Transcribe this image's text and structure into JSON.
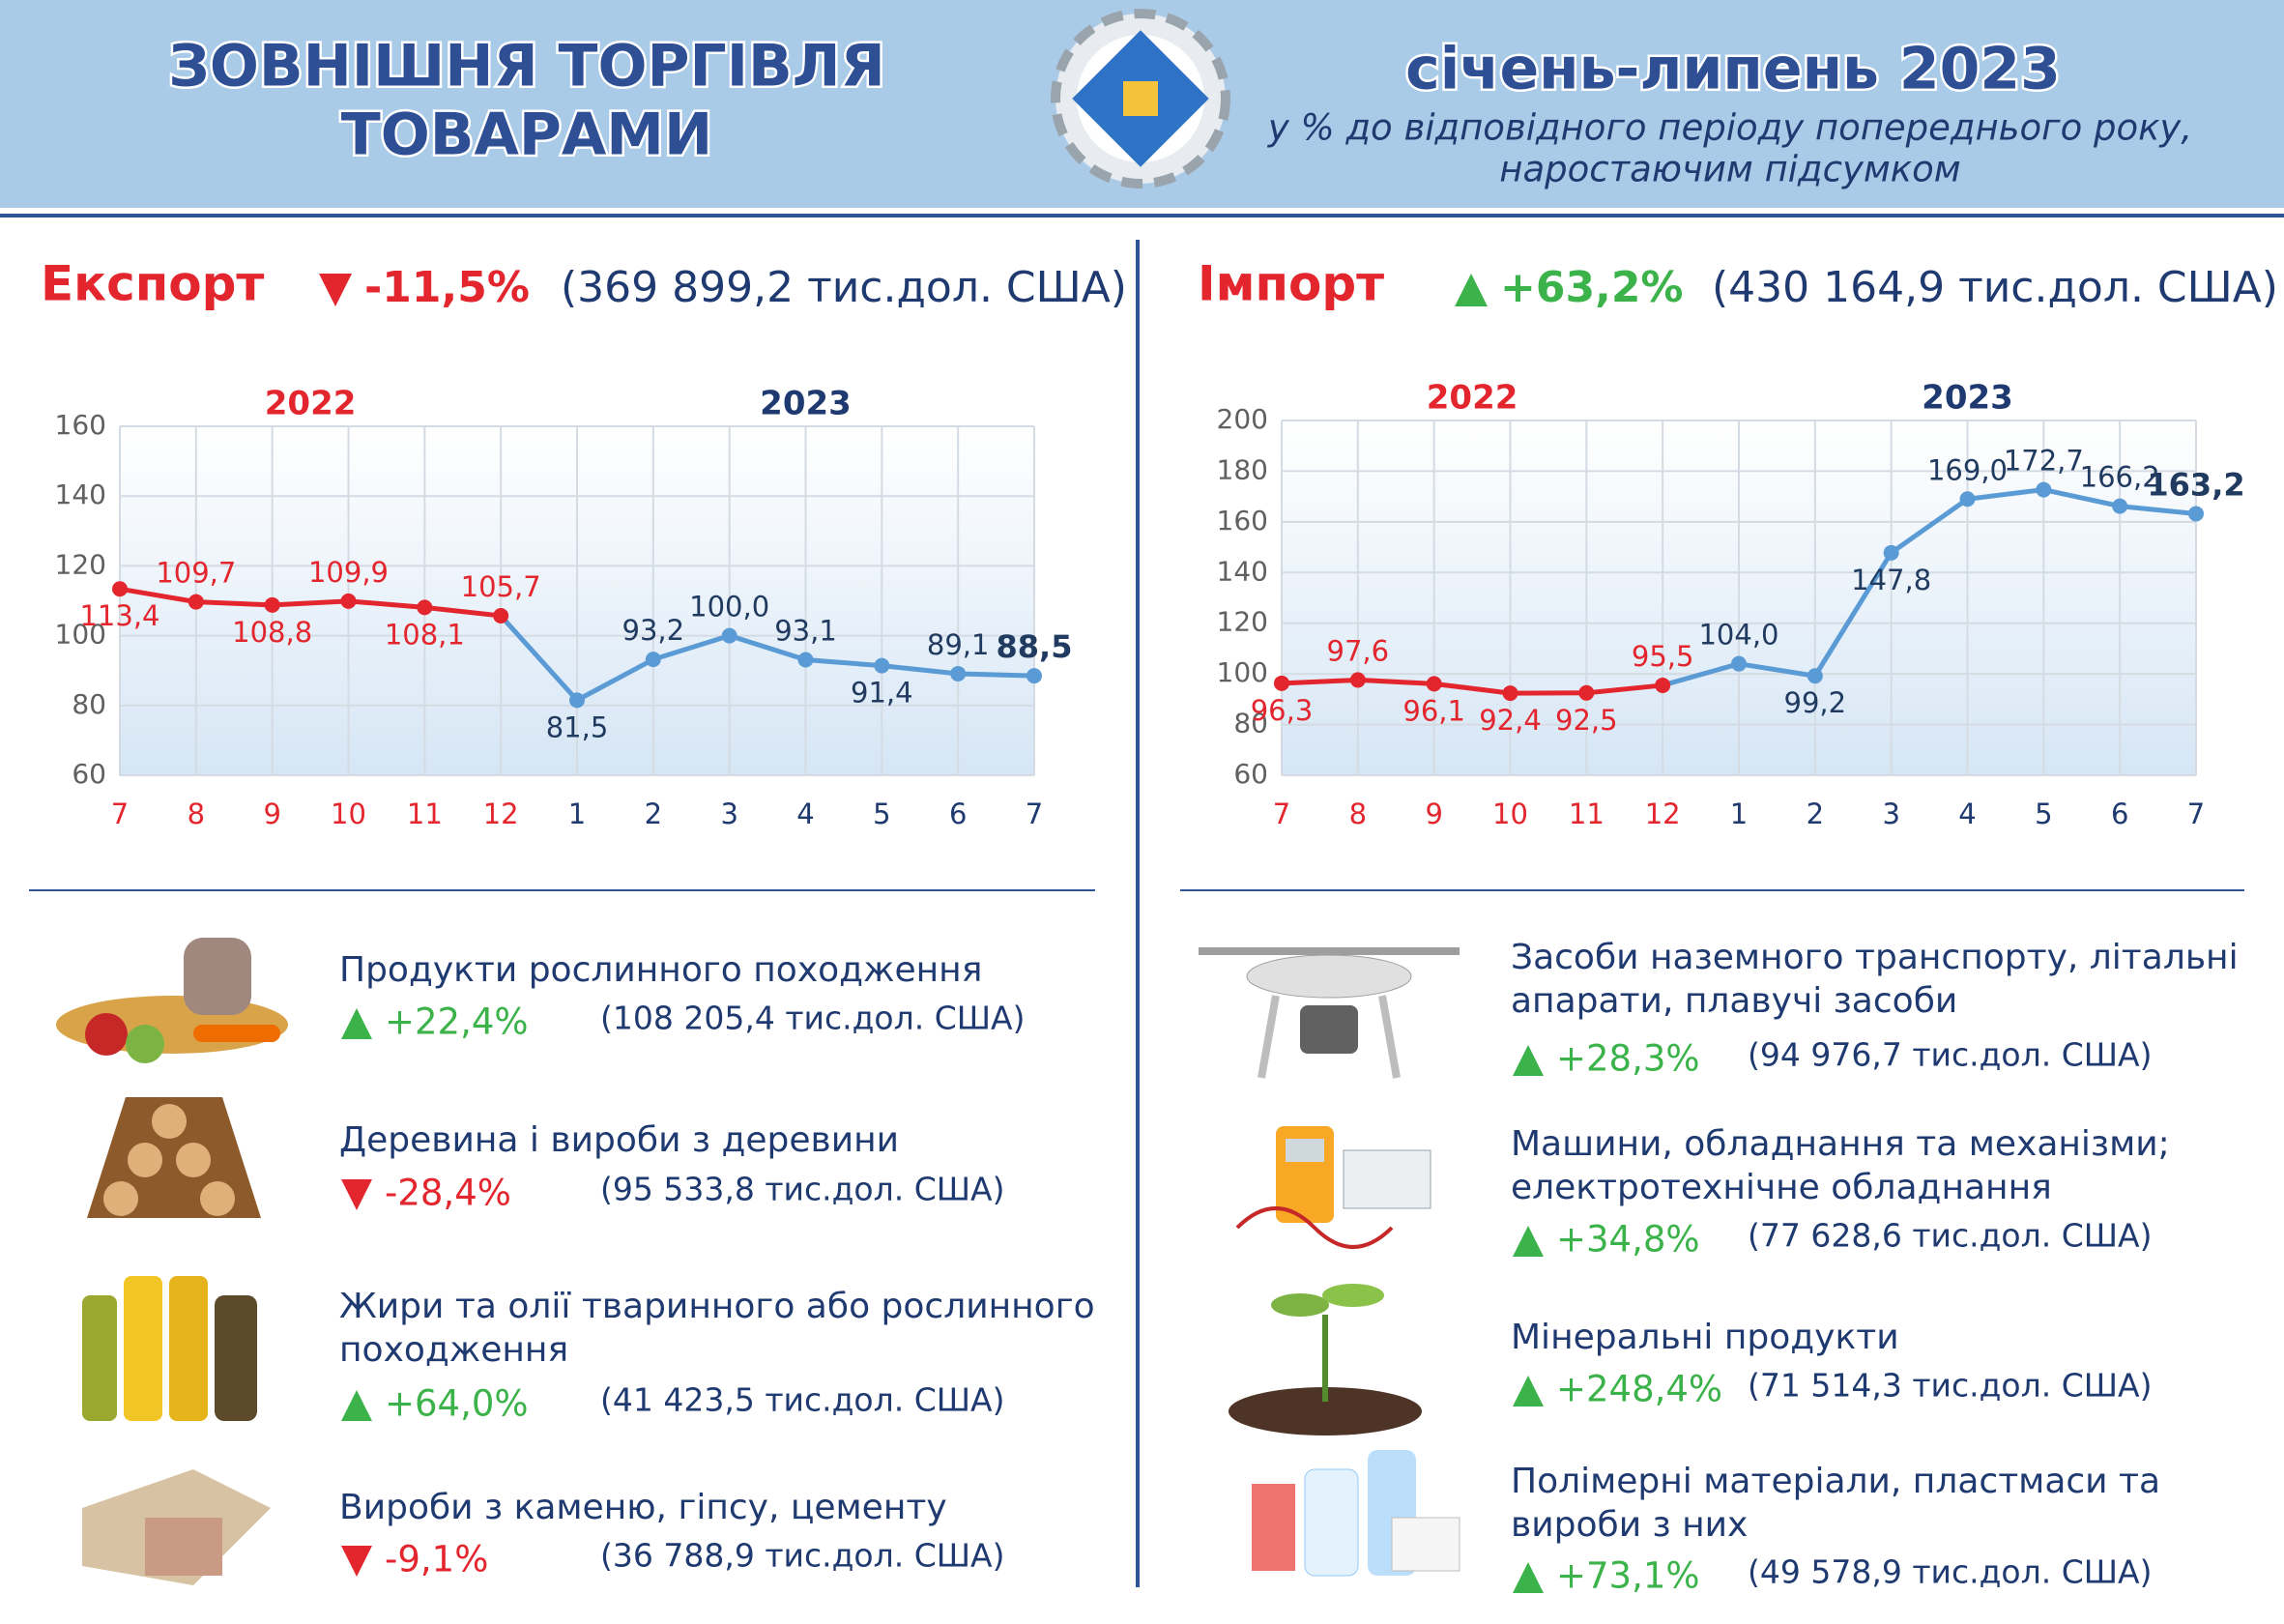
{
  "header": {
    "title_lines": [
      "ЗОВНІШНЯ ТОРГІВЛЯ",
      "ТОВАРАМИ"
    ],
    "period": "січень-липень 2023",
    "subtitle_lines": [
      "у % до відповідного періоду попереднього року,",
      "наростаючим підсумком"
    ]
  },
  "chart_data": [
    {
      "type": "line",
      "title": "Експорт",
      "change": "-11,5%",
      "total": "(369 899,2 тис.дол. США)",
      "categories": [
        "7",
        "8",
        "9",
        "10",
        "11",
        "12",
        "1",
        "2",
        "3",
        "4",
        "5",
        "6",
        "7"
      ],
      "series": [
        {
          "name": "2022",
          "color": "#e3262e",
          "label_color": "#e3262e",
          "values": [
            113.4,
            109.7,
            108.8,
            109.9,
            108.1,
            105.7,
            null,
            null,
            null,
            null,
            null,
            null,
            null
          ],
          "value_labels": [
            "113,4",
            "109,7",
            "108,8",
            "109,9",
            "108,1",
            "105,7",
            null,
            null,
            null,
            null,
            null,
            null,
            null
          ]
        },
        {
          "name": "2023",
          "color": "#5b9bd5",
          "label_color": "#203a60",
          "values": [
            null,
            null,
            null,
            null,
            null,
            null,
            81.5,
            93.2,
            100.0,
            93.1,
            91.4,
            89.1,
            88.5
          ],
          "value_labels": [
            null,
            null,
            null,
            null,
            null,
            null,
            "81,5",
            "93,2",
            "100,0",
            "93,1",
            "91,4",
            "89,1",
            "88,5"
          ]
        }
      ],
      "ylim": [
        60,
        160
      ],
      "yticks": [
        60,
        80,
        100,
        120,
        140,
        160
      ],
      "grid": true
    },
    {
      "type": "line",
      "title": "Імпорт",
      "change": "+63,2%",
      "total": "(430 164,9 тис.дол. США)",
      "categories": [
        "7",
        "8",
        "9",
        "10",
        "11",
        "12",
        "1",
        "2",
        "3",
        "4",
        "5",
        "6",
        "7"
      ],
      "series": [
        {
          "name": "2022",
          "color": "#e3262e",
          "label_color": "#e3262e",
          "values": [
            96.3,
            97.6,
            96.1,
            92.4,
            92.5,
            95.5,
            null,
            null,
            null,
            null,
            null,
            null,
            null
          ],
          "value_labels": [
            "96,3",
            "97,6",
            "96,1",
            "92,4",
            "92,5",
            "95,5",
            null,
            null,
            null,
            null,
            null,
            null,
            null
          ]
        },
        {
          "name": "2023",
          "color": "#5b9bd5",
          "label_color": "#203a60",
          "values": [
            null,
            null,
            null,
            null,
            null,
            null,
            104.0,
            99.2,
            147.8,
            169.0,
            172.7,
            166.2,
            163.2
          ],
          "value_labels": [
            null,
            null,
            null,
            null,
            null,
            null,
            "104,0",
            "99,2",
            "147,8",
            "169,0",
            "172,7",
            "166,2",
            "163,2"
          ]
        }
      ],
      "ylim": [
        60,
        200
      ],
      "yticks": [
        60,
        80,
        100,
        120,
        140,
        160,
        180,
        200
      ],
      "grid": true
    }
  ],
  "export_items": [
    {
      "name_lines": [
        "Продукти рослинного походження"
      ],
      "change": "+22,4%",
      "amount": "(108 205,4 тис.дол. США)"
    },
    {
      "name_lines": [
        "Деревина і вироби з деревини"
      ],
      "change": "-28,4%",
      "amount": "(95 533,8 тис.дол. США)"
    },
    {
      "name_lines": [
        "Жири та олії тваринного або рослинного",
        "походження"
      ],
      "change": "+64,0%",
      "amount": "(41 423,5 тис.дол. США)"
    },
    {
      "name_lines": [
        "Вироби з каменю, гіпсу, цементу"
      ],
      "change": "-9,1%",
      "amount": "(36 788,9 тис.дол. США)"
    }
  ],
  "import_items": [
    {
      "name_lines": [
        "Засоби наземного транспорту, літальні",
        "апарати, плавучі засоби"
      ],
      "change": "+28,3%",
      "amount": "(94 976,7 тис.дол. США)"
    },
    {
      "name_lines": [
        "Машини, обладнання та механізми;",
        "електротехнічне обладнання"
      ],
      "change": "+34,8%",
      "amount": "(77 628,6 тис.дол. США)"
    },
    {
      "name_lines": [
        "Мінеральні продукти"
      ],
      "change": "+248,4%",
      "amount": "(71 514,3 тис.дол. США)"
    },
    {
      "name_lines": [
        "Полімерні матеріали, пластмаси та",
        "вироби з них"
      ],
      "change": "+73,1%",
      "amount": "(49 578,9 тис.дол. США)"
    }
  ]
}
